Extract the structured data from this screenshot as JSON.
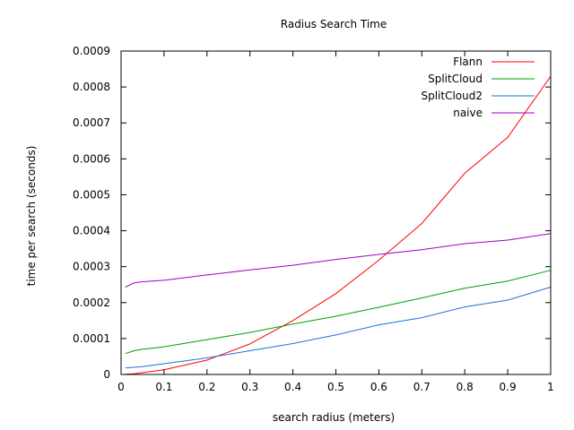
{
  "chart_data": {
    "type": "line",
    "title": "Radius Search Time",
    "xlabel": "search radius (meters)",
    "ylabel": "time per search (seconds)",
    "xlim": [
      0,
      1
    ],
    "ylim": [
      0,
      0.0009
    ],
    "xticks": [
      0,
      0.1,
      0.2,
      0.3,
      0.4,
      0.5,
      0.6,
      0.7,
      0.8,
      0.9,
      1
    ],
    "xtick_labels": [
      "0",
      "0.1",
      "0.2",
      "0.3",
      "0.4",
      "0.5",
      "0.6",
      "0.7",
      "0.8",
      "0.9",
      "1"
    ],
    "yticks": [
      0,
      0.0001,
      0.0002,
      0.0003,
      0.0004,
      0.0005,
      0.0006,
      0.0007,
      0.0008,
      0.0009
    ],
    "ytick_labels": [
      "0",
      "0.0001",
      "0.0002",
      "0.0003",
      "0.0004",
      "0.0005",
      "0.0006",
      "0.0007",
      "0.0008",
      "0.0009"
    ],
    "grid": false,
    "legend_position": "top-right",
    "series": [
      {
        "name": "Flann",
        "color": "#ff0000",
        "x": [
          0.01,
          0.03,
          0.05,
          0.1,
          0.2,
          0.3,
          0.4,
          0.5,
          0.6,
          0.7,
          0.8,
          0.9,
          1.0
        ],
        "y": [
          5e-07,
          2e-06,
          5e-06,
          1.3e-05,
          4e-05,
          8.5e-05,
          0.00015,
          0.000225,
          0.000318,
          0.00042,
          0.00056,
          0.00066,
          0.00083
        ]
      },
      {
        "name": "SplitCloud",
        "color": "#00a000",
        "x": [
          0.01,
          0.03,
          0.05,
          0.1,
          0.2,
          0.3,
          0.4,
          0.5,
          0.6,
          0.7,
          0.8,
          0.9,
          1.0
        ],
        "y": [
          5.8e-05,
          6.6e-05,
          7e-05,
          7.7e-05,
          9.7e-05,
          0.000117,
          0.00014,
          0.000162,
          0.000187,
          0.000213,
          0.00024,
          0.00026,
          0.00029
        ]
      },
      {
        "name": "SplitCloud2",
        "color": "#1a75d6",
        "x": [
          0.01,
          0.03,
          0.05,
          0.1,
          0.2,
          0.3,
          0.4,
          0.5,
          0.6,
          0.7,
          0.8,
          0.9,
          1.0
        ],
        "y": [
          1.8e-05,
          2e-05,
          2.2e-05,
          3e-05,
          4.6e-05,
          6.6e-05,
          8.6e-05,
          0.00011,
          0.000138,
          0.000158,
          0.000188,
          0.000207,
          0.000243
        ]
      },
      {
        "name": "naive",
        "color": "#a000c0",
        "x": [
          0.01,
          0.03,
          0.05,
          0.1,
          0.2,
          0.3,
          0.4,
          0.5,
          0.6,
          0.7,
          0.8,
          0.9,
          1.0
        ],
        "y": [
          0.000243,
          0.000255,
          0.000258,
          0.000262,
          0.000277,
          0.000291,
          0.000304,
          0.00032,
          0.000334,
          0.000347,
          0.000364,
          0.000374,
          0.000392
        ]
      }
    ]
  }
}
